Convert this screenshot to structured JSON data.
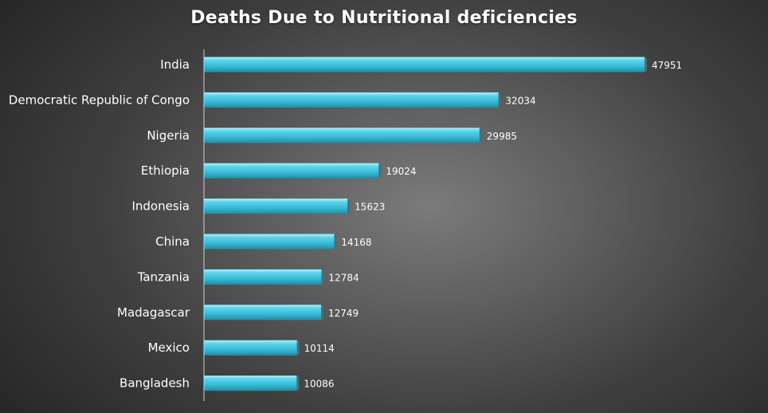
{
  "chart_data": {
    "type": "bar",
    "orientation": "horizontal",
    "title": "Deaths Due to Nutritional deficiencies",
    "categories": [
      "India",
      "Democratic Republic of Congo",
      "Nigeria",
      "Ethiopia",
      "Indonesia",
      "China",
      "Tanzania",
      "Madagascar",
      "Mexico",
      "Bangladesh"
    ],
    "values": [
      47951,
      32034,
      29985,
      19024,
      15623,
      14168,
      12784,
      12749,
      10114,
      10086
    ],
    "xlim": [
      0,
      48000
    ],
    "grid": false,
    "legend": "none",
    "colors": {
      "bar": "#3fc3dd",
      "bar_top": "#9eeaf8",
      "bar_shadow": "#1f7f94",
      "text": "#ffffff",
      "axis": "#cfcfcf"
    }
  }
}
